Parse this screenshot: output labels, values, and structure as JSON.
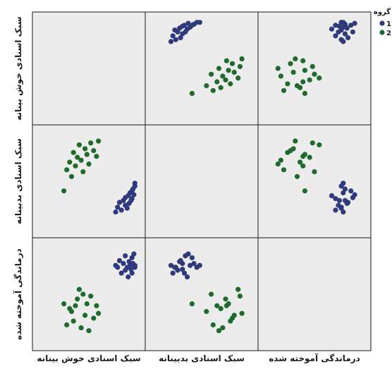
{
  "chart_data": {
    "type": "scatter",
    "subtype": "scatterplot-matrix",
    "variables": [
      "سبک اسنادی خوش بینانه",
      "سبک اسنادی بدبینانه",
      "درماندگی آموخته شده"
    ],
    "diagonal": "empty",
    "grid": false,
    "legend": {
      "title": "گروه",
      "position": "top-right",
      "entries": [
        {
          "label": "1",
          "color": "#2e3a7c"
        },
        {
          "label": "2",
          "color": "#1e6b2c"
        }
      ]
    },
    "value_range": [
      0,
      100
    ],
    "series": [
      {
        "name": "1",
        "color": "#2e3a7c",
        "points": [
          {
            "x": 78,
            "y": 18,
            "z": 80
          },
          {
            "x": 80,
            "y": 23,
            "z": 78
          },
          {
            "x": 82,
            "y": 28,
            "z": 85
          },
          {
            "x": 84,
            "y": 20,
            "z": 72
          },
          {
            "x": 86,
            "y": 30,
            "z": 82
          },
          {
            "x": 88,
            "y": 25,
            "z": 75
          },
          {
            "x": 88,
            "y": 33,
            "z": 90
          },
          {
            "x": 90,
            "y": 22,
            "z": 78
          },
          {
            "x": 91,
            "y": 35,
            "z": 68
          },
          {
            "x": 92,
            "y": 27,
            "z": 84
          },
          {
            "x": 93,
            "y": 38,
            "z": 80
          },
          {
            "x": 94,
            "y": 30,
            "z": 76
          },
          {
            "x": 95,
            "y": 40,
            "z": 88
          },
          {
            "x": 95,
            "y": 32,
            "z": 72
          },
          {
            "x": 96,
            "y": 42,
            "z": 82
          },
          {
            "x": 97,
            "y": 36,
            "z": 92
          },
          {
            "x": 98,
            "y": 45,
            "z": 78
          },
          {
            "x": 98,
            "y": 48,
            "z": 80
          }
        ]
      },
      {
        "name": "2",
        "color": "#1e6b2c",
        "points": [
          {
            "x": 24,
            "y": 40,
            "z": 40
          },
          {
            "x": 27,
            "y": 62,
            "z": 18
          },
          {
            "x": 30,
            "y": 70,
            "z": 35
          },
          {
            "x": 32,
            "y": 55,
            "z": 32
          },
          {
            "x": 34,
            "y": 80,
            "z": 22
          },
          {
            "x": 36,
            "y": 66,
            "z": 38
          },
          {
            "x": 38,
            "y": 75,
            "z": 45
          },
          {
            "x": 40,
            "y": 88,
            "z": 55
          },
          {
            "x": 42,
            "y": 72,
            "z": 15
          },
          {
            "x": 44,
            "y": 60,
            "z": 50
          },
          {
            "x": 46,
            "y": 84,
            "z": 28
          },
          {
            "x": 48,
            "y": 78,
            "z": 40
          },
          {
            "x": 50,
            "y": 68,
            "z": 12
          },
          {
            "x": 52,
            "y": 90,
            "z": 48
          },
          {
            "x": 55,
            "y": 82,
            "z": 25
          },
          {
            "x": 58,
            "y": 76,
            "z": 38
          },
          {
            "x": 60,
            "y": 92,
            "z": 30
          }
        ]
      }
    ]
  }
}
